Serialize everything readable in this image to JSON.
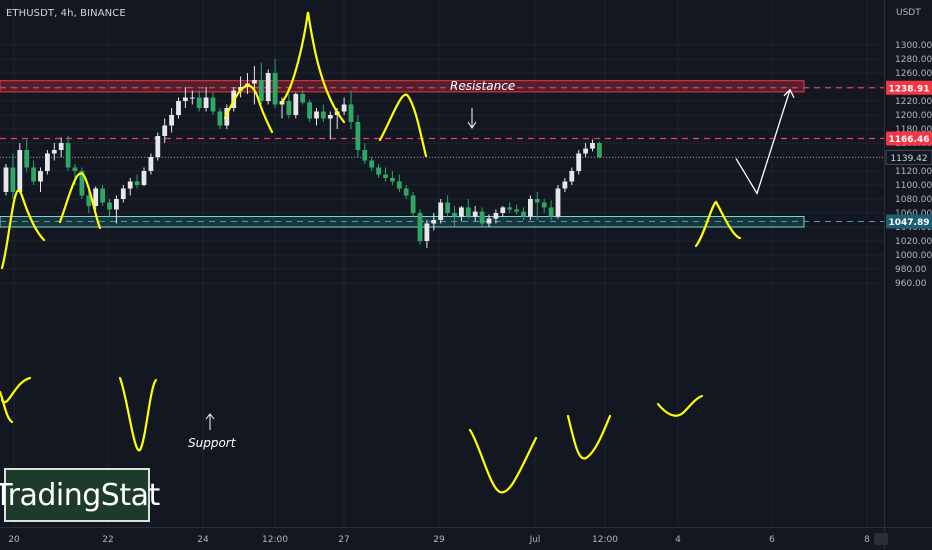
{
  "header": {
    "symbol": "ETHUSDT, 4h, BINANCE",
    "unit": "USDT"
  },
  "logo": {
    "text": "TradingStat"
  },
  "annotations": {
    "resistance": "Resistance",
    "support": "Support"
  },
  "colors": {
    "background": "#131722",
    "up": "#e0e3eb",
    "down": "#26a269",
    "resistance": "#f23645",
    "support": "#3fa9a0",
    "drawing": "#ffff00",
    "arrow": "#ffffff"
  },
  "chart_data": {
    "type": "candlestick",
    "symbol": "ETHUSDT",
    "timeframe": "4h",
    "exchange": "BINANCE",
    "ylim": [
      952,
      1323
    ],
    "y_ticks": [
      960,
      980,
      1000,
      1020,
      1040,
      1060,
      1080,
      1100,
      1120,
      1140,
      1160,
      1180,
      1200,
      1220,
      1240,
      1260,
      1280,
      1300
    ],
    "x_ticks": [
      "20",
      "22",
      "24",
      "12:00",
      "27",
      "29",
      "Jul",
      "12:00",
      "4",
      "6",
      "8"
    ],
    "price_labels": [
      {
        "value": 1238.91,
        "text": "1238.91",
        "style": "resistance"
      },
      {
        "value": 1166.46,
        "text": "1166.46",
        "style": "resistance"
      },
      {
        "value": 1139.42,
        "text": "1139.42",
        "style": "last"
      },
      {
        "value": 1047.89,
        "text": "1047.89",
        "style": "support"
      }
    ],
    "resistance_zone": [
      1233,
      1249
    ],
    "support_zone": [
      1040,
      1055
    ],
    "candles": [
      [
        1090,
        1130,
        1085,
        1125
      ],
      [
        1125,
        1145,
        1080,
        1090
      ],
      [
        1090,
        1160,
        1088,
        1150
      ],
      [
        1150,
        1165,
        1118,
        1125
      ],
      [
        1125,
        1135,
        1100,
        1105
      ],
      [
        1105,
        1125,
        1090,
        1120
      ],
      [
        1120,
        1150,
        1115,
        1145
      ],
      [
        1145,
        1160,
        1135,
        1150
      ],
      [
        1150,
        1168,
        1140,
        1160
      ],
      [
        1160,
        1170,
        1120,
        1125
      ],
      [
        1125,
        1130,
        1100,
        1120
      ],
      [
        1120,
        1125,
        1080,
        1085
      ],
      [
        1085,
        1092,
        1060,
        1070
      ],
      [
        1070,
        1098,
        1065,
        1095
      ],
      [
        1095,
        1100,
        1070,
        1075
      ],
      [
        1075,
        1080,
        1055,
        1065
      ],
      [
        1065,
        1085,
        1045,
        1080
      ],
      [
        1080,
        1100,
        1075,
        1095
      ],
      [
        1095,
        1110,
        1085,
        1105
      ],
      [
        1105,
        1115,
        1095,
        1100
      ],
      [
        1100,
        1125,
        1098,
        1120
      ],
      [
        1120,
        1145,
        1115,
        1140
      ],
      [
        1140,
        1175,
        1135,
        1170
      ],
      [
        1170,
        1195,
        1160,
        1185
      ],
      [
        1185,
        1210,
        1175,
        1200
      ],
      [
        1200,
        1225,
        1195,
        1220
      ],
      [
        1220,
        1240,
        1210,
        1225
      ],
      [
        1225,
        1235,
        1215,
        1225
      ],
      [
        1225,
        1235,
        1205,
        1210
      ],
      [
        1210,
        1240,
        1205,
        1225
      ],
      [
        1225,
        1232,
        1200,
        1205
      ],
      [
        1205,
        1210,
        1180,
        1185
      ],
      [
        1185,
        1215,
        1180,
        1210
      ],
      [
        1210,
        1240,
        1205,
        1235
      ],
      [
        1235,
        1255,
        1225,
        1240
      ],
      [
        1240,
        1260,
        1230,
        1245
      ],
      [
        1245,
        1270,
        1215,
        1250
      ],
      [
        1250,
        1275,
        1215,
        1220
      ],
      [
        1220,
        1265,
        1215,
        1260
      ],
      [
        1260,
        1280,
        1210,
        1215
      ],
      [
        1215,
        1225,
        1195,
        1220
      ],
      [
        1220,
        1230,
        1195,
        1200
      ],
      [
        1200,
        1232,
        1195,
        1230
      ],
      [
        1230,
        1235,
        1215,
        1218
      ],
      [
        1218,
        1222,
        1190,
        1195
      ],
      [
        1195,
        1210,
        1185,
        1205
      ],
      [
        1205,
        1215,
        1190,
        1195
      ],
      [
        1195,
        1205,
        1165,
        1200
      ],
      [
        1200,
        1210,
        1180,
        1205
      ],
      [
        1205,
        1225,
        1200,
        1215
      ],
      [
        1215,
        1235,
        1180,
        1190
      ],
      [
        1190,
        1200,
        1140,
        1150
      ],
      [
        1150,
        1160,
        1130,
        1135
      ],
      [
        1135,
        1140,
        1120,
        1125
      ],
      [
        1125,
        1130,
        1110,
        1115
      ],
      [
        1115,
        1125,
        1105,
        1110
      ],
      [
        1110,
        1120,
        1100,
        1105
      ],
      [
        1105,
        1115,
        1090,
        1095
      ],
      [
        1095,
        1100,
        1080,
        1085
      ],
      [
        1085,
        1090,
        1055,
        1060
      ],
      [
        1060,
        1065,
        1015,
        1020
      ],
      [
        1020,
        1050,
        1010,
        1045
      ],
      [
        1045,
        1060,
        1035,
        1050
      ],
      [
        1050,
        1080,
        1045,
        1075
      ],
      [
        1075,
        1085,
        1055,
        1060
      ],
      [
        1060,
        1070,
        1040,
        1055
      ],
      [
        1055,
        1070,
        1048,
        1068
      ],
      [
        1068,
        1080,
        1052,
        1055
      ],
      [
        1055,
        1070,
        1048,
        1062
      ],
      [
        1062,
        1068,
        1040,
        1045
      ],
      [
        1045,
        1058,
        1040,
        1052
      ],
      [
        1052,
        1065,
        1045,
        1060
      ],
      [
        1060,
        1070,
        1055,
        1068
      ],
      [
        1068,
        1075,
        1060,
        1065
      ],
      [
        1065,
        1072,
        1058,
        1062
      ],
      [
        1062,
        1068,
        1050,
        1055
      ],
      [
        1055,
        1085,
        1050,
        1080
      ],
      [
        1080,
        1090,
        1050,
        1075
      ],
      [
        1075,
        1080,
        1060,
        1068
      ],
      [
        1068,
        1078,
        1050,
        1055
      ],
      [
        1055,
        1100,
        1052,
        1095
      ],
      [
        1095,
        1110,
        1090,
        1105
      ],
      [
        1105,
        1125,
        1100,
        1120
      ],
      [
        1120,
        1150,
        1115,
        1145
      ],
      [
        1145,
        1160,
        1140,
        1152
      ],
      [
        1152,
        1165,
        1148,
        1160
      ],
      [
        1160,
        1162,
        1138,
        1140
      ]
    ],
    "annotation_arrow_path": [
      [
        1138,
        1088
      ],
      [
        1238.91
      ]
    ]
  }
}
